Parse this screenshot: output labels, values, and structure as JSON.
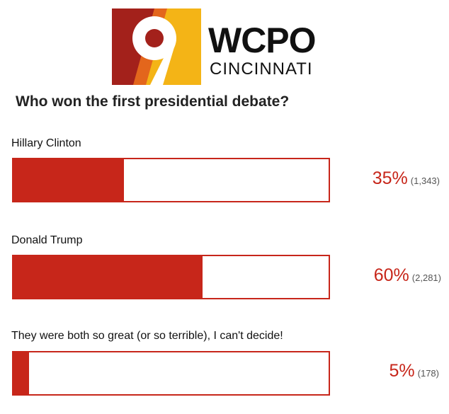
{
  "logo": {
    "numeral": "9",
    "wordmark": "WCPO",
    "city": "CINCINNATI",
    "colors": {
      "red": "#a3211b",
      "yellow": "#f4b416",
      "orange": "#e3661c"
    }
  },
  "poll": {
    "question": "Who won the first presidential debate?",
    "accent_color": "#c7261a",
    "options": [
      {
        "label": "Hillary Clinton",
        "percent_text": "35%",
        "count_text": "(1,343)",
        "fraction": 0.35
      },
      {
        "label": "Donald Trump",
        "percent_text": "60%",
        "count_text": "(2,281)",
        "fraction": 0.6
      },
      {
        "label": "They were both so great (or so terrible), I can't decide!",
        "percent_text": "5%",
        "count_text": "(178)",
        "fraction": 0.05
      }
    ]
  }
}
